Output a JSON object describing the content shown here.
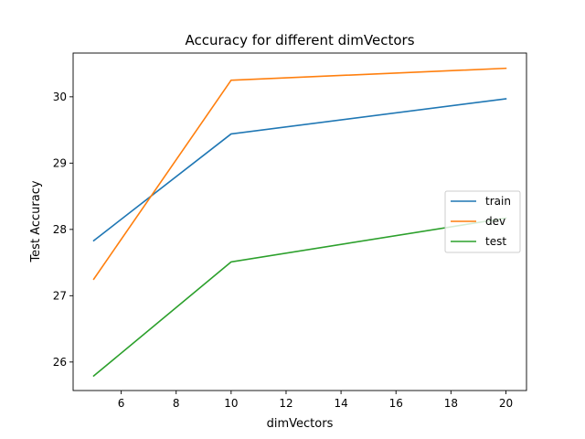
{
  "chart_data": {
    "type": "line",
    "title": "Accuracy for different dimVectors",
    "xlabel": "dimVectors",
    "ylabel": "Test Accuracy",
    "x": [
      5,
      10,
      20
    ],
    "xlim": [
      4.25,
      20.75
    ],
    "ylim": [
      25.57,
      30.66
    ],
    "xticks": [
      6,
      8,
      10,
      12,
      14,
      16,
      18,
      20
    ],
    "yticks": [
      26,
      27,
      28,
      29,
      30
    ],
    "grid": false,
    "legend_position": "center-right",
    "series": [
      {
        "name": "train",
        "color": "#1f77b4",
        "values": [
          27.83,
          29.44,
          29.97
        ]
      },
      {
        "name": "dev",
        "color": "#ff7f0e",
        "values": [
          27.25,
          30.25,
          30.43
        ]
      },
      {
        "name": "test",
        "color": "#2ca02c",
        "values": [
          25.79,
          27.51,
          28.17
        ]
      }
    ]
  }
}
